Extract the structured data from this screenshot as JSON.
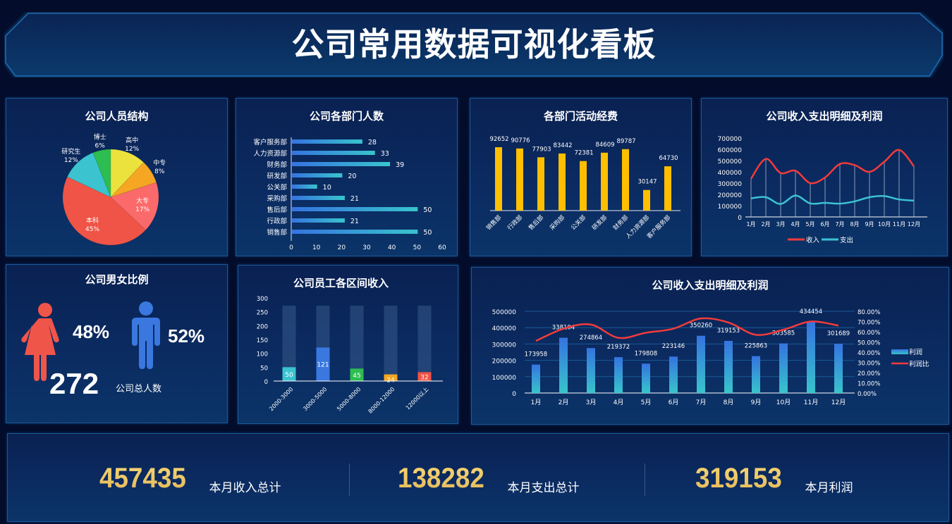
{
  "header": {
    "title": "公司常用数据可视化看板"
  },
  "panels": {
    "structure": {
      "title": "公司人员结构"
    },
    "dept_count": {
      "title": "公司各部门人数"
    },
    "dept_expense": {
      "title": "各部门活动经费"
    },
    "income_line": {
      "title": "公司收入支出明细及利润"
    },
    "gender": {
      "title": "公司男女比例",
      "female_pct": "48%",
      "male_pct": "52%",
      "total": "272",
      "total_label": "公司总人数",
      "female_color": "#f0554a",
      "male_color": "#3a78e0"
    },
    "salary": {
      "title": "公司员工各区间收入"
    },
    "profit": {
      "title": "公司收入支出明细及利润"
    }
  },
  "footer": {
    "items": [
      {
        "value": "457435",
        "label": "本月收入总计"
      },
      {
        "value": "138282",
        "label": "本月支出总计"
      },
      {
        "value": "319153",
        "label": "本月利润"
      }
    ]
  },
  "chart_data": [
    {
      "type": "pie",
      "title": "公司人员结构",
      "categories": [
        "高中",
        "中专",
        "大专",
        "本科",
        "研究生",
        "博士"
      ],
      "values": [
        12,
        8,
        17,
        45,
        12,
        6
      ],
      "labels": [
        "12%",
        "8%",
        "17%",
        "45%",
        "12%",
        "6%"
      ],
      "colors": [
        "#ebe23e",
        "#f5a623",
        "#fb6a6a",
        "#ef5446",
        "#3bc3d0",
        "#2dbd50"
      ]
    },
    {
      "type": "bar",
      "orientation": "horizontal",
      "title": "公司各部门人数",
      "categories": [
        "客户服务部",
        "人力资源部",
        "财务部",
        "研发部",
        "公关部",
        "采购部",
        "售后部",
        "行政部",
        "销售部"
      ],
      "values": [
        28,
        33,
        39,
        20,
        10,
        21,
        50,
        21,
        50
      ],
      "xlim": [
        0,
        60
      ],
      "xticks": [
        0,
        10,
        20,
        30,
        40,
        50,
        60
      ]
    },
    {
      "type": "bar",
      "title": "各部门活动经费",
      "categories": [
        "销售部",
        "行政部",
        "售后部",
        "采购部",
        "公关部",
        "研发部",
        "财务部",
        "人力资源部",
        "客户服务部"
      ],
      "values": [
        92652,
        90776,
        77903,
        83442,
        72381,
        84609,
        89787,
        30147,
        64730
      ],
      "color": "#ffbf00"
    },
    {
      "type": "line",
      "title": "公司收入支出明细及利润",
      "categories": [
        "1月",
        "2月",
        "3月",
        "4月",
        "5月",
        "6月",
        "7月",
        "8月",
        "9月",
        "10月",
        "11月",
        "12月"
      ],
      "series": [
        {
          "name": "收入",
          "values": [
            340000,
            515000,
            390000,
            410000,
            300000,
            350000,
            470000,
            460000,
            400000,
            490000,
            595000,
            450000
          ],
          "color": "#f33b3b"
        },
        {
          "name": "支出",
          "values": [
            165000,
            175000,
            115000,
            190000,
            120000,
            125000,
            118000,
            138000,
            175000,
            185000,
            155000,
            145000
          ],
          "color": "#3cc2d3"
        }
      ],
      "ylim": [
        0,
        700000
      ],
      "yticks": [
        0,
        100000,
        200000,
        300000,
        400000,
        500000,
        600000,
        700000
      ],
      "legend_position": "bottom"
    },
    {
      "type": "bar",
      "title": "公司员工各区间收入",
      "categories": [
        "2000-3000",
        "3000-5000",
        "5000-8000",
        "8000-12000",
        "12000以上"
      ],
      "values": [
        50,
        121,
        45,
        24,
        32
      ],
      "background_max": 272,
      "colors": [
        "#3bc3d0",
        "#3a78e0",
        "#2dbd50",
        "#f5a623",
        "#ef5446"
      ],
      "ylim": [
        0,
        300
      ],
      "yticks": [
        0,
        50,
        100,
        150,
        200,
        250,
        300
      ]
    },
    {
      "type": "bar+line",
      "title": "公司收入支出明细及利润",
      "categories": [
        "1月",
        "2月",
        "3月",
        "4月",
        "5月",
        "6月",
        "7月",
        "8月",
        "9月",
        "10月",
        "11月",
        "12月"
      ],
      "series": [
        {
          "name": "利润",
          "type": "bar",
          "values": [
            173958,
            338104,
            274864,
            219372,
            179808,
            223146,
            350260,
            319153,
            225863,
            303585,
            434454,
            301689
          ]
        },
        {
          "name": "利润比",
          "type": "line",
          "axis": "right",
          "values": [
            51,
            63,
            67,
            54,
            59,
            63,
            73,
            69,
            57,
            62,
            70,
            66
          ],
          "color": "#f33b3b"
        }
      ],
      "ylim": [
        0,
        500000
      ],
      "yticks": [
        0,
        100000,
        200000,
        300000,
        400000,
        500000
      ],
      "y2lim": [
        0,
        80
      ],
      "y2ticks": [
        "0.00%",
        "10.00%",
        "20.00%",
        "30.00%",
        "40.00%",
        "50.00%",
        "60.00%",
        "70.00%",
        "80.00%"
      ],
      "legend_position": "right"
    }
  ]
}
